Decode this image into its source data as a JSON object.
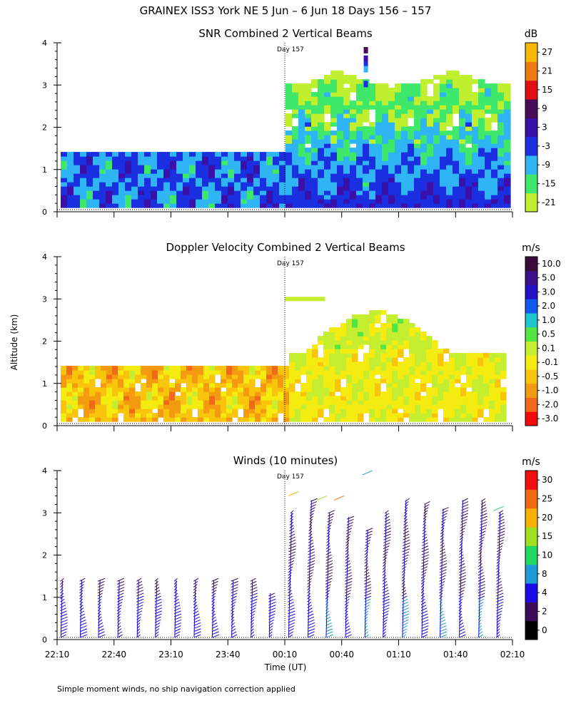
{
  "header": {
    "title": "GRAINEX ISS3 York NE   5 Jun –  6 Jun 18 Days 156 – 157",
    "footnote": "Simple moment winds, no ship navigation correction applied",
    "shared_ylabel": "Altitude (km)",
    "xlabel": "Time (UT)",
    "day_marker": "Day 157"
  },
  "colors": {
    "snr": [
      "#bfef2f",
      "#3fe86a",
      "#2fb4f4",
      "#1a2fe0",
      "#3b10a8",
      "#4a0a5a",
      "#e01010",
      "#f07a10",
      "#f8b800"
    ],
    "doppler": [
      "#f20a0a",
      "#f06818",
      "#f49a10",
      "#f8c40c",
      "#f4ec10",
      "#c6ee30",
      "#54e640",
      "#1ec6d0",
      "#1058f0",
      "#2410c8",
      "#3b0e8c",
      "#3a0a3a"
    ],
    "winds": [
      "#000000",
      "#3b0a5a",
      "#1a0ae8",
      "#1e9ad8",
      "#1ed860",
      "#a0e020",
      "#f8b000",
      "#f06810",
      "#f01010"
    ]
  },
  "chart_data": [
    {
      "type": "heatmap",
      "title": "SNR Combined 2 Vertical Beams",
      "ylabel": "Altitude (km)",
      "ylim": [
        0,
        4
      ],
      "yticks": [
        "0",
        "1",
        "2",
        "3",
        "4"
      ],
      "x_range_hours": [
        22.1667,
        26.1667
      ],
      "colorbar": {
        "unit": "dB",
        "labels": [
          "-21",
          "-15",
          "-9",
          "-3",
          "3",
          "9",
          "15",
          "21",
          "27"
        ]
      },
      "day_marker_hour": 24.1667,
      "height_before_km": 1.4,
      "height_after_km": 3.3
    },
    {
      "type": "heatmap",
      "title": "Doppler Velocity Combined 2 Vertical Beams",
      "ylabel": "Altitude (km)",
      "ylim": [
        0,
        4
      ],
      "yticks": [
        "0",
        "1",
        "2",
        "3",
        "4"
      ],
      "x_range_hours": [
        22.1667,
        26.1667
      ],
      "colorbar": {
        "unit": "m/s",
        "labels": [
          "-3.0",
          "-2.0",
          "-1.0",
          "-0.5",
          "-0.1",
          "0.1",
          "0.5",
          "1.0",
          "2.0",
          "3.0",
          "5.0",
          "10.0"
        ]
      },
      "day_marker_hour": 24.1667,
      "height_before_km": 1.4,
      "height_after_km": 3.0
    },
    {
      "type": "scatter",
      "title": "Winds (10 minutes)",
      "ylabel": "Altitude (km)",
      "xlabel": "Time (UT)",
      "ylim": [
        0,
        4
      ],
      "yticks": [
        "0",
        "1",
        "2",
        "3",
        "4"
      ],
      "x_range_hours": [
        22.1667,
        26.1667
      ],
      "xticks": [
        "22:10",
        "22:40",
        "23:10",
        "23:40",
        "00:10",
        "00:40",
        "01:10",
        "01:40",
        "02:10"
      ],
      "colorbar": {
        "unit": "m/s",
        "labels": [
          "0",
          "2",
          "4",
          "8",
          "10",
          "15",
          "20",
          "25",
          "30"
        ]
      },
      "day_marker_hour": 24.1667,
      "profile_hours": [
        22.2,
        22.37,
        22.53,
        22.7,
        22.87,
        23.03,
        23.2,
        23.37,
        23.53,
        23.7,
        23.87,
        24.03,
        24.2,
        24.37,
        24.53,
        24.7,
        24.87,
        25.03,
        25.2,
        25.37,
        25.53,
        25.7,
        25.87,
        26.03
      ],
      "profile_top_km": [
        1.4,
        1.4,
        1.4,
        1.4,
        1.4,
        1.4,
        1.4,
        1.4,
        1.4,
        1.4,
        1.4,
        1.1,
        3.0,
        3.3,
        3.0,
        2.9,
        2.6,
        3.0,
        3.3,
        3.2,
        3.1,
        3.3,
        3.3,
        3.0
      ]
    }
  ]
}
